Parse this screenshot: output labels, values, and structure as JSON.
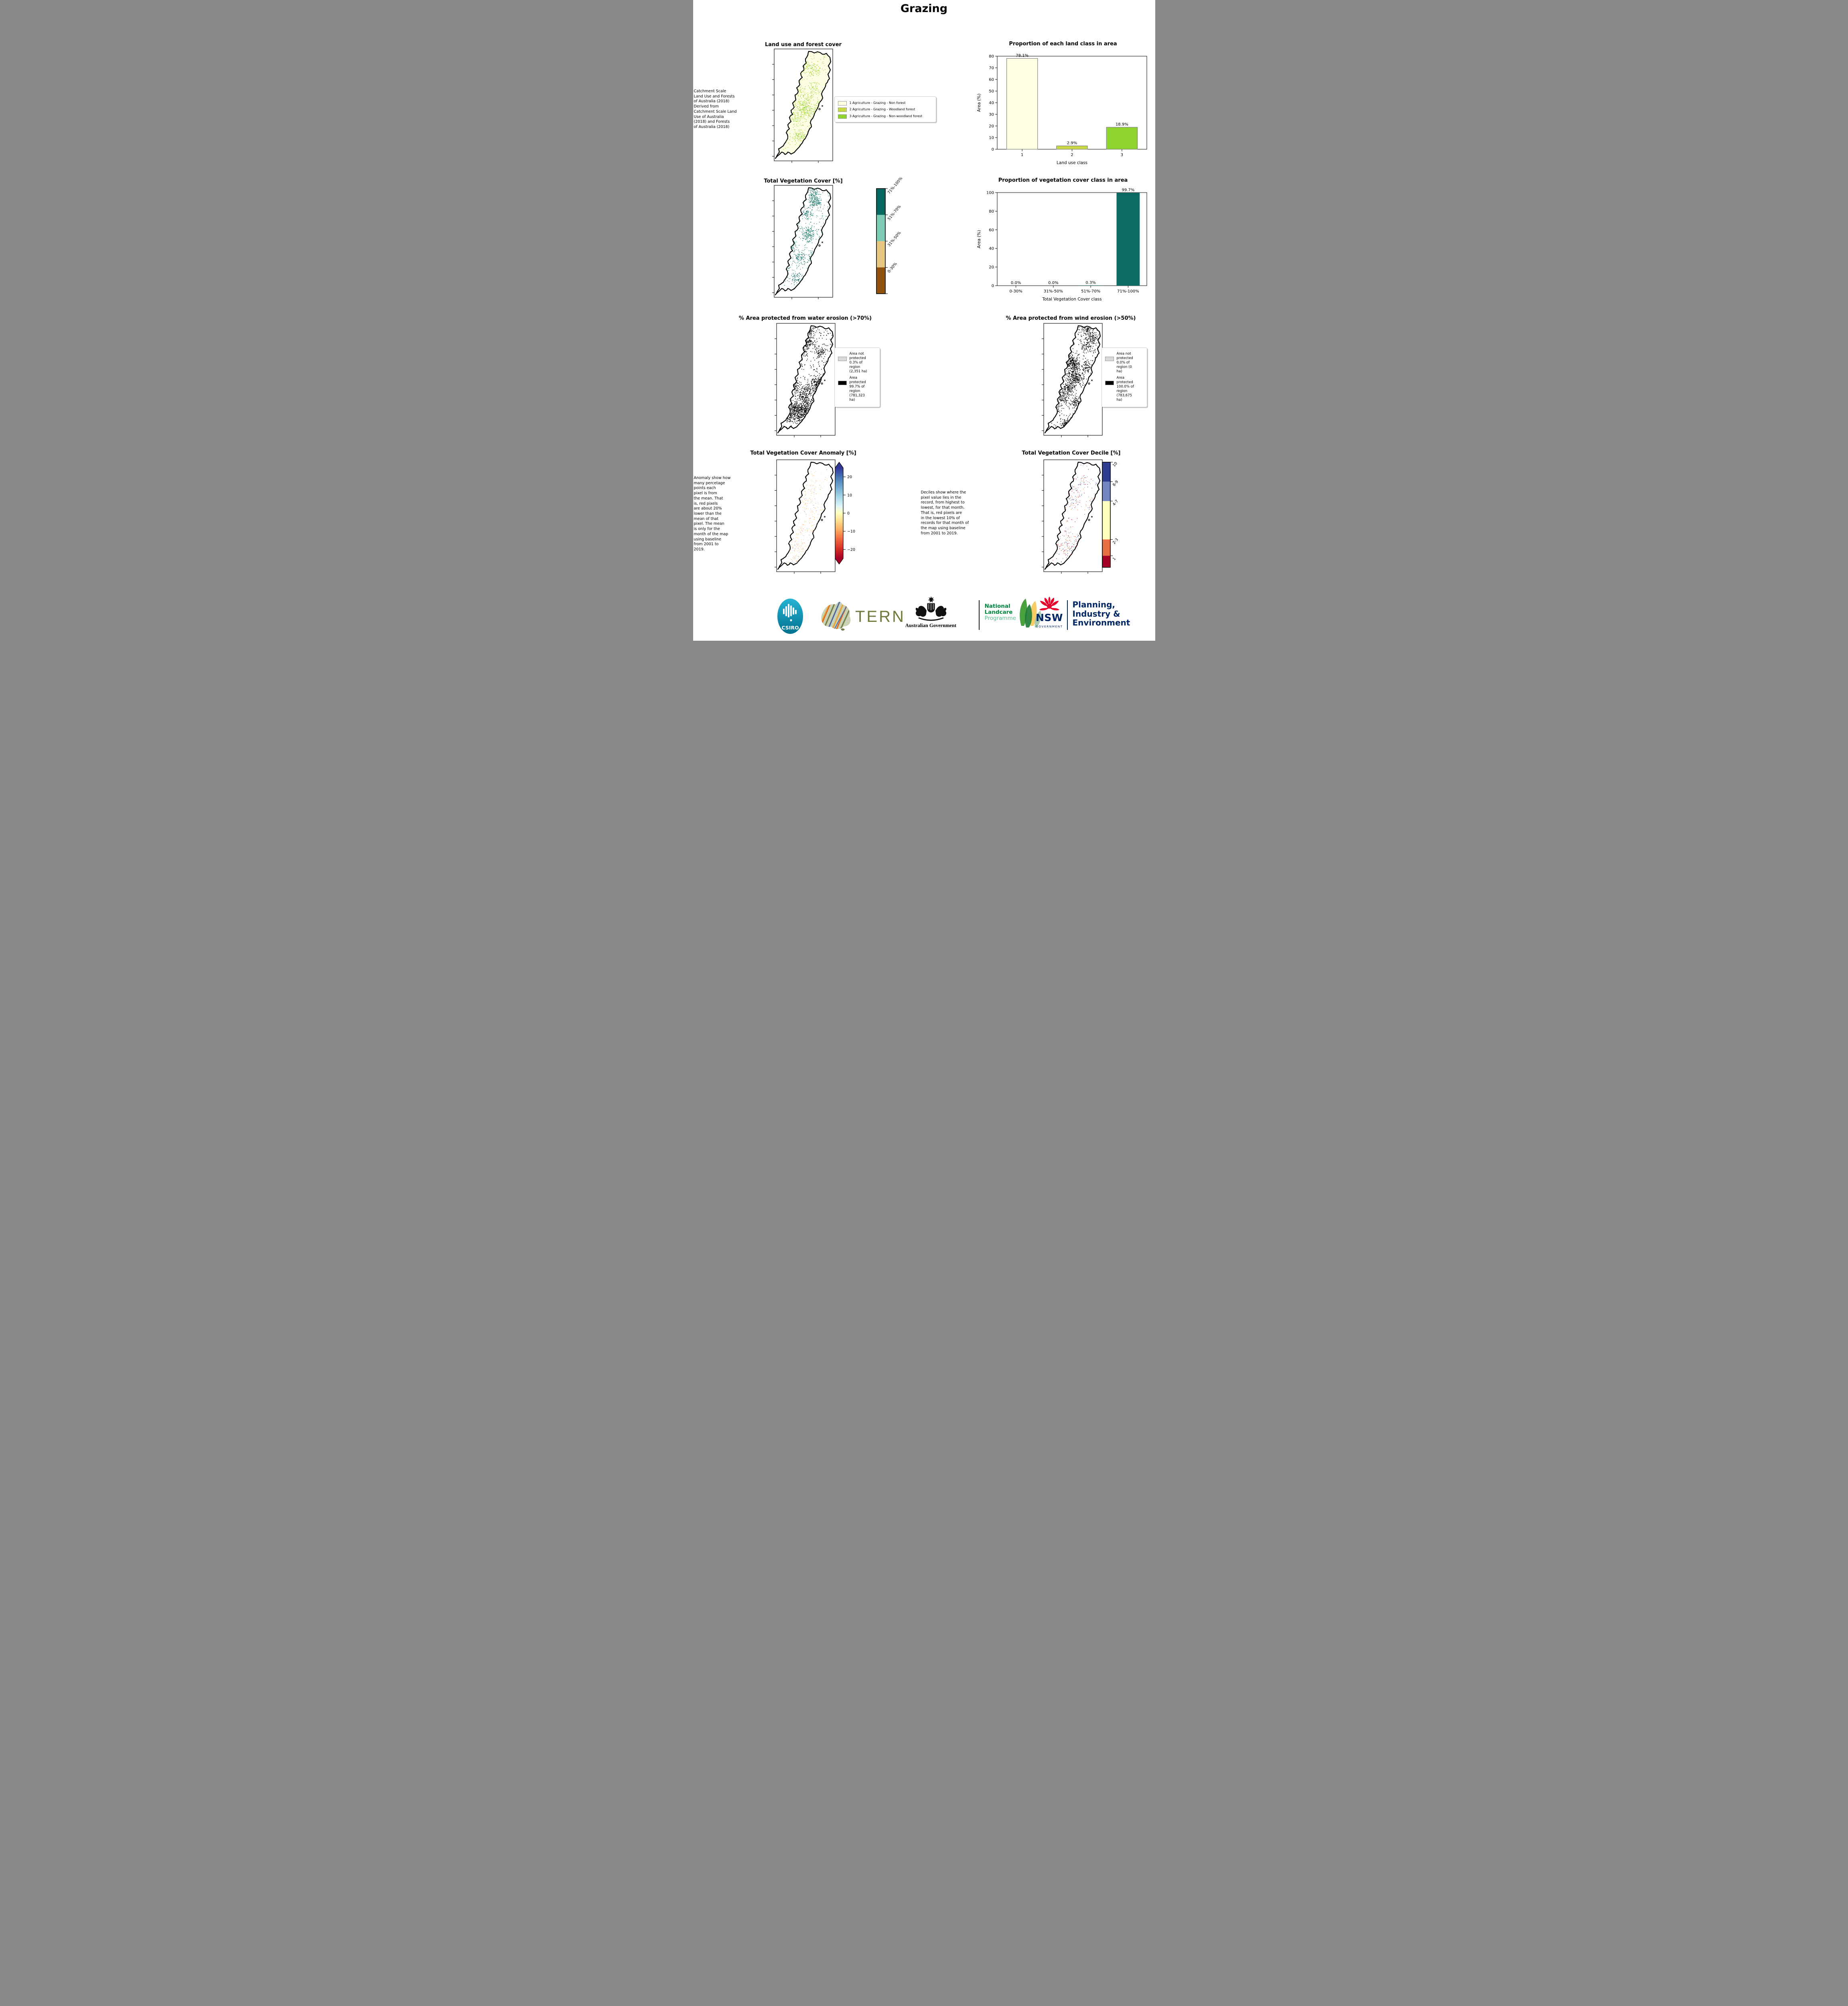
{
  "page_title": "Grazing",
  "colors": {
    "landuse_c1": "#feffe3",
    "landuse_c2": "#c9d944",
    "landuse_c3": "#8ed32f",
    "teal_dark": "#06685e",
    "teal_light": "#7fcbb6",
    "tan": "#e7c684",
    "brown": "#90530f",
    "legend_gray": "#d9d9d9",
    "legend_black": "#000000",
    "csiro_teal": "#0e9fc0",
    "tern_olive": "#6f7a3a",
    "landcare_green": "#00843d",
    "landcare_light_green": "#5dbb8d",
    "nsw_navy": "#002664",
    "nsw_red": "#e4002b"
  },
  "row1": {
    "side_note": " Catchment Scale\nLand Use and Forests\nof Australia (2018)\nDerived from\nCatchment Scale Land\nUse of Australia\n(2018) and Forests\nof Australia (2018)",
    "map_title": "Land use and forest cover",
    "legend_items": [
      {
        "label": "1 Agriculture - Grazing - Non forest",
        "color": "#feffe3"
      },
      {
        "label": "2 Agriculture - Grazing - Woodland forest",
        "color": "#c9d944"
      },
      {
        "label": "3 Agriculture - Grazing - Non-woodland forest",
        "color": "#8ed32f"
      }
    ]
  },
  "row2": {
    "map_title": "Total Vegetation Cover [%]",
    "colorbar_classes": [
      {
        "label": "71%-100%",
        "color": "#06685e"
      },
      {
        "label": "51%-70%",
        "color": "#7fcbb6"
      },
      {
        "label": "31%-50%",
        "color": "#e7c684"
      },
      {
        "label": "0-30%",
        "color": "#90530f"
      }
    ]
  },
  "row3": {
    "water": {
      "title": "% Area protected from water erosion (>70%)",
      "legend_items": [
        {
          "color": "#d9d9d9",
          "label": "Area not\nprotected\n0.3% of\nregion\n(2,351 ha)"
        },
        {
          "color": "#000000",
          "label": "Area\nprotected\n99.7% of\nregion\n(781,323\nha)"
        }
      ]
    },
    "wind": {
      "title": "% Area protected from wind erosion (>50%)",
      "legend_items": [
        {
          "color": "#d9d9d9",
          "label": "Area not\nprotected\n0.0% of\nregion (0\nha)"
        },
        {
          "color": "#000000",
          "label": "Area\nprotected\n100.0% of\nregion\n(783,675\nha)"
        }
      ]
    }
  },
  "row4": {
    "anomaly": {
      "title": "Total Vegetation Cover Anomaly [%]",
      "side_note": "Anomaly show how\nmany percetage\npoints each\npixel is from\nthe mean. That\nis, red pixels\nare about 20%\nlower than the\nmean of that\npixel. The mean\nis only for the\nmonth of the map\nusing baseline\nfrom 2001 to\n2019.",
      "colorbar_ticks": [
        {
          "label": "20",
          "value": 20
        },
        {
          "label": "10",
          "value": 10
        },
        {
          "label": "0",
          "value": 0
        },
        {
          "label": "−10",
          "value": -10
        },
        {
          "label": "−20",
          "value": -20
        }
      ],
      "colorbar_range": [
        -25,
        25
      ]
    },
    "decile": {
      "title": "Total Vegetation Cover Decile [%]",
      "side_note": "Deciles show where the\npixel value lies in the\nrecord, from highest to\nlowest, for that month.\nThat is, red pixels are\nin the lowest 10% of\nrecords for that month of\nthe map using baseline\nfrom 2001 to 2019.",
      "colorbar_classes": [
        {
          "label": "10",
          "color": "#2e3d8f",
          "span": 0.185
        },
        {
          "label": "8-9",
          "color": "#7486bf",
          "span": 0.185
        },
        {
          "label": "4-7",
          "color": "#ffffbf",
          "span": 0.365
        },
        {
          "label": "2-3",
          "color": "#ea6e43",
          "span": 0.155
        },
        {
          "label": "1",
          "color": "#a50026",
          "span": 0.11
        }
      ]
    }
  },
  "chart_data": [
    {
      "type": "bar",
      "title": "Proportion of each land class in area",
      "categories": [
        "1",
        "2",
        "3"
      ],
      "values": [
        78.1,
        2.9,
        18.9
      ],
      "bar_labels": [
        "78.1%",
        "2.9%",
        "18.9%"
      ],
      "bar_colors": [
        "#feffe3",
        "#c9d944",
        "#8ed32f"
      ],
      "bar_edge": "#7f7f7f",
      "xlabel": "Land use class",
      "ylabel": "Area (%)",
      "ylim": [
        0,
        80
      ],
      "yticks": [
        0,
        10,
        20,
        30,
        40,
        50,
        60,
        70,
        80
      ],
      "grid": false,
      "legend_position": "none"
    },
    {
      "type": "bar",
      "title": "Proportion of vegetation cover class in area",
      "categories": [
        "0-30%",
        "31%-50%",
        "51%-70%",
        "71%-100%"
      ],
      "values": [
        0.0,
        0.0,
        0.3,
        99.7
      ],
      "bar_labels": [
        "0.0%",
        "0.0%",
        "0.3%",
        "99.7%"
      ],
      "bar_colors": [
        "#0c6b62",
        "#0c6b62",
        "#0c6b62",
        "#0c6b62"
      ],
      "bar_edge": null,
      "xlabel": "Total Vegetation Cover class",
      "ylabel": "Area (%)",
      "ylim": [
        0,
        100
      ],
      "yticks": [
        0,
        20,
        40,
        60,
        80,
        100
      ],
      "grid": false,
      "legend_position": "none"
    }
  ],
  "footer": {
    "csiro_label": "CSIRO",
    "tern_label": "TERN",
    "ausgov_label": "Australian Government",
    "landcare_line1": "National",
    "landcare_line2": "Landcare",
    "landcare_line3": "Programme",
    "nsw_label": "NSW",
    "nsw_sub": "GOVERNMENT",
    "pie_line1": "Planning,",
    "pie_line2": "Industry &",
    "pie_line3": "Environment"
  }
}
